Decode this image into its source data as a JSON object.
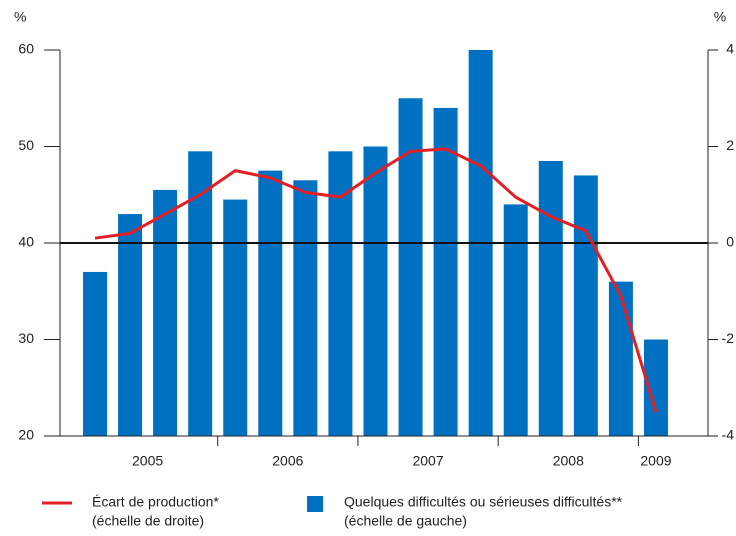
{
  "chart_data": {
    "type": "bar_line",
    "y_unit_left": "%",
    "y_unit_right": "%",
    "categories": [
      "2005",
      null,
      null,
      null,
      "2006",
      null,
      null,
      null,
      "2007",
      null,
      null,
      null,
      "2008",
      null,
      null,
      null,
      "2009"
    ],
    "series": [
      {
        "name": "Quelques difficultés ou sérieuses difficultés**",
        "name_note": "(échelle de gauche)",
        "type": "bar",
        "color": "#0070c0",
        "axis": "y",
        "values": [
          37,
          43,
          45.5,
          49.5,
          44.5,
          47.5,
          46.5,
          49.5,
          50,
          55,
          54,
          60,
          44,
          48.5,
          47,
          36,
          30
        ]
      },
      {
        "name": "Écart de production*",
        "name_note": "(échelle de droite)",
        "type": "line",
        "color": "#e31f26",
        "axis": "y2",
        "values": [
          0.1,
          0.2,
          0.6,
          1.0,
          1.5,
          1.35,
          1.05,
          0.95,
          1.45,
          1.9,
          1.95,
          1.6,
          0.95,
          0.55,
          0.25,
          -1.1,
          -3.5
        ]
      }
    ],
    "ylim": [
      20,
      60
    ],
    "yticks": [
      20,
      30,
      40,
      50,
      60
    ],
    "y2lim": [
      -4,
      4
    ],
    "y2ticks": [
      -4,
      -2,
      0,
      2,
      4
    ],
    "reference_line": 40
  }
}
